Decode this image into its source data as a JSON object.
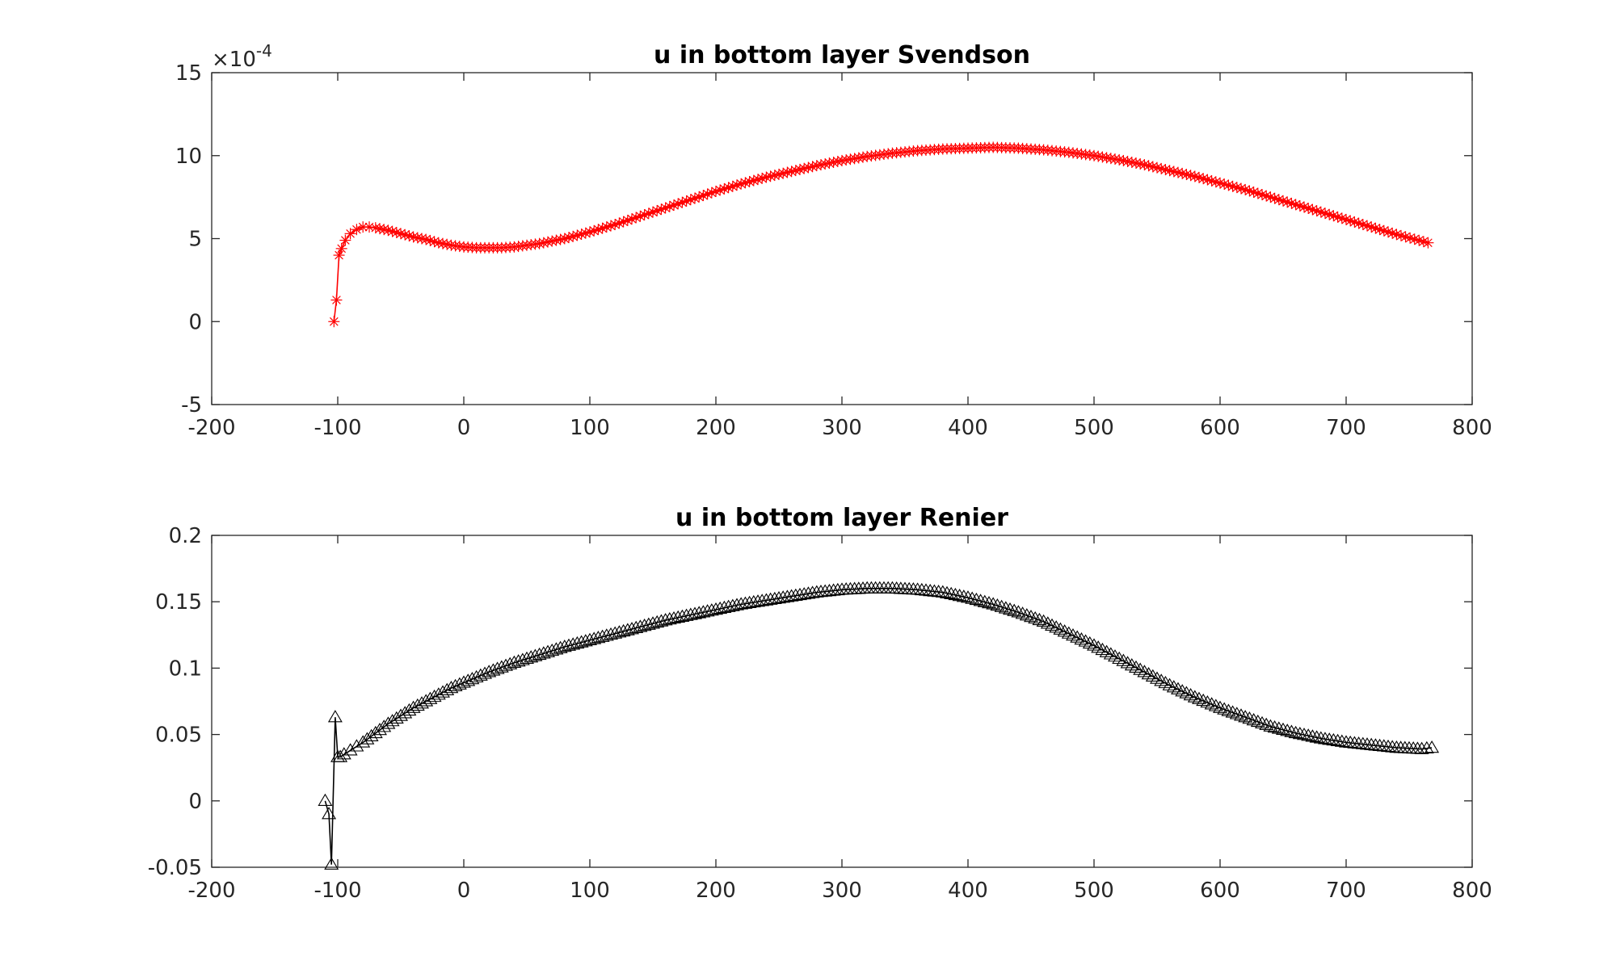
{
  "chart_data": [
    {
      "type": "line",
      "title": "u in bottom layer Svendson",
      "xlabel": "",
      "ylabel": "",
      "xlim": [
        -200,
        800
      ],
      "ylim": [
        -5,
        15
      ],
      "xticks": [
        -200,
        -100,
        0,
        100,
        200,
        300,
        400,
        500,
        600,
        700,
        800
      ],
      "yticks": [
        -5,
        0,
        5,
        10,
        15
      ],
      "xtick_labels": [
        "-200",
        "-100",
        "0",
        "100",
        "200",
        "300",
        "400",
        "500",
        "600",
        "700",
        "800"
      ],
      "ytick_labels": [
        "-5",
        "0",
        "5",
        "10",
        "15"
      ],
      "exponent_base": "×10",
      "exponent_power": "-4",
      "grid": false,
      "series": [
        {
          "color": "#ff0000",
          "marker": "asterisk",
          "x": [
            -103,
            -101,
            -99,
            -97,
            -94,
            -90,
            -85,
            -80,
            -75,
            -70,
            -60,
            -50,
            -40,
            -30,
            -20,
            -10,
            0,
            10,
            20,
            30,
            40,
            50,
            60,
            80,
            100,
            120,
            140,
            160,
            180,
            200,
            220,
            240,
            260,
            280,
            300,
            320,
            340,
            360,
            380,
            400,
            420,
            440,
            460,
            480,
            500,
            520,
            540,
            560,
            580,
            600,
            620,
            640,
            660,
            680,
            700,
            720,
            740,
            765
          ],
          "y": [
            0,
            1.3,
            4.0,
            4.4,
            4.9,
            5.3,
            5.55,
            5.7,
            5.7,
            5.65,
            5.5,
            5.3,
            5.1,
            4.95,
            4.75,
            4.6,
            4.5,
            4.45,
            4.45,
            4.45,
            4.5,
            4.6,
            4.7,
            5.0,
            5.4,
            5.85,
            6.35,
            6.85,
            7.35,
            7.85,
            8.3,
            8.7,
            9.05,
            9.4,
            9.7,
            9.95,
            10.15,
            10.3,
            10.4,
            10.45,
            10.5,
            10.45,
            10.35,
            10.2,
            10.0,
            9.75,
            9.45,
            9.1,
            8.75,
            8.35,
            7.95,
            7.5,
            7.05,
            6.6,
            6.15,
            5.7,
            5.25,
            4.75
          ]
        }
      ]
    },
    {
      "type": "line",
      "title": "u in bottom layer Renier",
      "xlabel": "",
      "ylabel": "",
      "xlim": [
        -200,
        800
      ],
      "ylim": [
        -0.05,
        0.2
      ],
      "xticks": [
        -200,
        -100,
        0,
        100,
        200,
        300,
        400,
        500,
        600,
        700,
        800
      ],
      "yticks": [
        -0.05,
        0,
        0.05,
        0.1,
        0.15,
        0.2
      ],
      "xtick_labels": [
        "-200",
        "-100",
        "0",
        "100",
        "200",
        "300",
        "400",
        "500",
        "600",
        "700",
        "800"
      ],
      "ytick_labels": [
        "-0.05",
        "0",
        "0.05",
        "0.1",
        "0.15",
        "0.2"
      ],
      "grid": false,
      "series": [
        {
          "color": "#000000",
          "marker": "triangle",
          "x": [
            -110,
            -107,
            -105,
            -102,
            -100,
            -98,
            -95,
            -90,
            -85,
            -80,
            -70,
            -60,
            -50,
            -40,
            -30,
            -20,
            -10,
            0,
            20,
            40,
            60,
            80,
            100,
            120,
            140,
            160,
            180,
            200,
            220,
            240,
            260,
            280,
            300,
            320,
            340,
            360,
            380,
            400,
            420,
            440,
            460,
            480,
            500,
            520,
            540,
            560,
            580,
            600,
            620,
            640,
            660,
            680,
            700,
            720,
            740,
            760,
            768
          ],
          "y": [
            0.0,
            -0.01,
            -0.048,
            0.063,
            0.033,
            0.033,
            0.035,
            0.038,
            0.041,
            0.044,
            0.051,
            0.058,
            0.064,
            0.07,
            0.075,
            0.08,
            0.085,
            0.089,
            0.097,
            0.104,
            0.11,
            0.116,
            0.121,
            0.126,
            0.131,
            0.136,
            0.14,
            0.144,
            0.148,
            0.151,
            0.154,
            0.157,
            0.159,
            0.16,
            0.16,
            0.159,
            0.157,
            0.153,
            0.148,
            0.142,
            0.135,
            0.126,
            0.117,
            0.107,
            0.097,
            0.087,
            0.078,
            0.07,
            0.063,
            0.056,
            0.051,
            0.047,
            0.044,
            0.042,
            0.04,
            0.039,
            0.04
          ]
        }
      ]
    }
  ]
}
